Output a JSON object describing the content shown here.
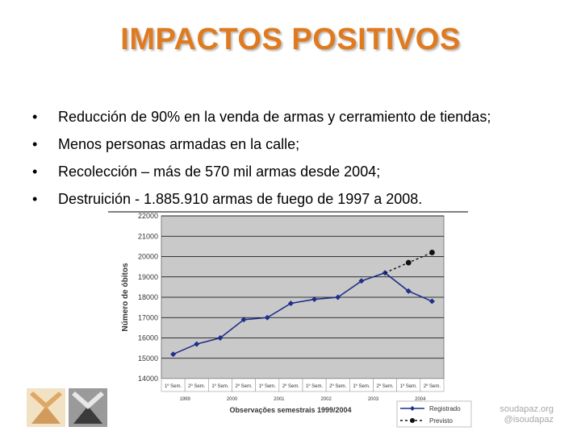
{
  "title": "IMPACTOS POSITIVOS",
  "bullets": [
    "Reducción de  90% en la venda de armas y cerramiento de tiendas;",
    "Menos personas armadas en la calle;",
    "Recolección – más de 570 mil armas desde 2004;",
    "Destruición - 1.885.910 armas de fuego  de 1997 a 2008."
  ],
  "branding": {
    "line1": "soudapaz.org",
    "line2": "@isoudapaz"
  },
  "chart_data": {
    "type": "line",
    "title": "",
    "xlabel": "Observações semestrais 1999/2004",
    "ylabel": "Número de óbitos",
    "ylim": [
      14000,
      22000
    ],
    "yticks": [
      14000,
      15000,
      16000,
      17000,
      18000,
      19000,
      20000,
      21000,
      22000
    ],
    "grid": true,
    "legend": "bottom-right",
    "categories": [
      "1º Sem.",
      "2º Sem.",
      "1º Sem.",
      "2º Sem.",
      "1º Sem.",
      "2º Sem.",
      "1º Sem.",
      "2º Sem.",
      "1º Sem.",
      "2º Sem.",
      "1º Sem.",
      "2º Sem."
    ],
    "years": [
      "1999",
      "2000",
      "2001",
      "2002",
      "2003",
      "2004"
    ],
    "series": [
      {
        "name": "Registrado",
        "color": "#1f2f8a",
        "style": "solid",
        "values": [
          15200,
          15700,
          16000,
          16900,
          17000,
          17700,
          17900,
          18000,
          18800,
          19200,
          18300,
          17800
        ]
      },
      {
        "name": "Previsto",
        "color": "#111111",
        "style": "dashed",
        "values": [
          null,
          null,
          null,
          null,
          null,
          null,
          null,
          null,
          null,
          19200,
          19700,
          20200
        ]
      }
    ]
  }
}
